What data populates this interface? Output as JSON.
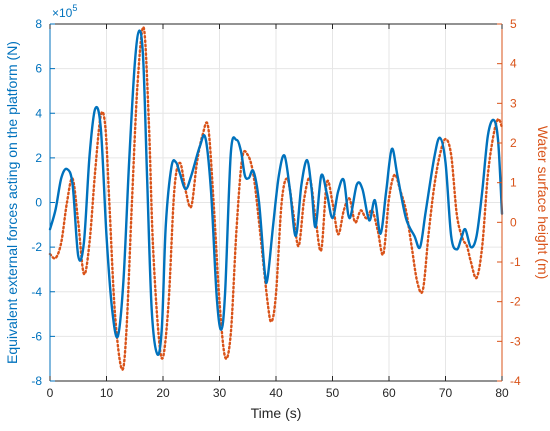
{
  "chart_data": {
    "type": "line",
    "title": "",
    "xlabel": "Time (s)",
    "xlim": [
      0,
      80
    ],
    "x_ticks": [
      0,
      10,
      20,
      30,
      40,
      50,
      60,
      70,
      80
    ],
    "grid": true,
    "left_axis": {
      "label": "Equivalent external forces acting on the platform (N)",
      "ylim": [
        -800000,
        800000
      ],
      "tick_labels": [
        "-8",
        "-6",
        "-4",
        "-2",
        "0",
        "2",
        "4",
        "6",
        "8"
      ],
      "tick_values": [
        -800000,
        -600000,
        -400000,
        -200000,
        0,
        200000,
        400000,
        600000,
        800000
      ],
      "exponent_label": "×10",
      "exponent_power": "5",
      "color": "#0072BD"
    },
    "right_axis": {
      "label": "Water surface height (m)",
      "ylim": [
        -4,
        5
      ],
      "tick_values": [
        -4,
        -3,
        -2,
        -1,
        0,
        1,
        2,
        3,
        4,
        5
      ],
      "tick_labels": [
        "-4",
        "-3",
        "-2",
        "-1",
        "0",
        "1",
        "2",
        "3",
        "4",
        "5"
      ],
      "color": "#D95319"
    },
    "series": [
      {
        "axis": "left",
        "style": "solid",
        "color": "#0072BD",
        "points": [
          [
            0,
            -120000
          ],
          [
            1,
            -30000
          ],
          [
            2,
            110000
          ],
          [
            3,
            150000
          ],
          [
            4,
            80000
          ],
          [
            5,
            -240000
          ],
          [
            6,
            -180000
          ],
          [
            7,
            210000
          ],
          [
            8,
            420000
          ],
          [
            9,
            330000
          ],
          [
            10,
            -150000
          ],
          [
            11,
            -480000
          ],
          [
            12,
            -600000
          ],
          [
            13,
            -350000
          ],
          [
            14,
            180000
          ],
          [
            15,
            620000
          ],
          [
            15.8,
            770000
          ],
          [
            16.5,
            640000
          ],
          [
            17.2,
            100000
          ],
          [
            18,
            -480000
          ],
          [
            19,
            -680000
          ],
          [
            19.8,
            -560000
          ],
          [
            20.5,
            -100000
          ],
          [
            21.5,
            160000
          ],
          [
            22.3,
            180000
          ],
          [
            23,
            130000
          ],
          [
            24,
            60000
          ],
          [
            25,
            120000
          ],
          [
            26.5,
            250000
          ],
          [
            27.5,
            290000
          ],
          [
            28.5,
            50000
          ],
          [
            29.5,
            -420000
          ],
          [
            30.3,
            -570000
          ],
          [
            31,
            -400000
          ],
          [
            32,
            220000
          ],
          [
            33,
            280000
          ],
          [
            33.8,
            230000
          ],
          [
            34.5,
            120000
          ],
          [
            35.2,
            110000
          ],
          [
            36,
            140000
          ],
          [
            37,
            0
          ],
          [
            38,
            -310000
          ],
          [
            38.5,
            -340000
          ],
          [
            39.5,
            -100000
          ],
          [
            40.5,
            120000
          ],
          [
            41.5,
            210000
          ],
          [
            42.5,
            50000
          ],
          [
            43.5,
            -150000
          ],
          [
            44.5,
            80000
          ],
          [
            45.5,
            190000
          ],
          [
            46.3,
            60000
          ],
          [
            47,
            -110000
          ],
          [
            48,
            120000
          ],
          [
            49,
            40000
          ],
          [
            50,
            -70000
          ],
          [
            51,
            50000
          ],
          [
            52,
            100000
          ],
          [
            53,
            -70000
          ],
          [
            54.3,
            80000
          ],
          [
            55.3,
            60000
          ],
          [
            56.5,
            -80000
          ],
          [
            57.5,
            10000
          ],
          [
            58.5,
            -140000
          ],
          [
            59.5,
            50000
          ],
          [
            60.5,
            240000
          ],
          [
            61.5,
            120000
          ],
          [
            63,
            -70000
          ],
          [
            64.5,
            -150000
          ],
          [
            65.5,
            -200000
          ],
          [
            66.5,
            -40000
          ],
          [
            68,
            200000
          ],
          [
            69,
            290000
          ],
          [
            70,
            180000
          ],
          [
            71,
            -150000
          ],
          [
            72,
            -210000
          ],
          [
            72.8,
            -160000
          ],
          [
            73.5,
            -120000
          ],
          [
            74.5,
            -200000
          ],
          [
            75.5,
            -150000
          ],
          [
            76.5,
            50000
          ],
          [
            77.5,
            300000
          ],
          [
            78.5,
            370000
          ],
          [
            79.3,
            280000
          ],
          [
            80,
            -50000
          ]
        ]
      },
      {
        "axis": "right",
        "style": "dotted",
        "color": "#D95319",
        "points": [
          [
            0,
            -0.8
          ],
          [
            1,
            -0.9
          ],
          [
            2,
            -0.5
          ],
          [
            3,
            0.5
          ],
          [
            4,
            1.1
          ],
          [
            5,
            0.0
          ],
          [
            6,
            -1.3
          ],
          [
            7,
            -0.5
          ],
          [
            8,
            1.3
          ],
          [
            9,
            2.7
          ],
          [
            9.8,
            2.4
          ],
          [
            10.5,
            0.5
          ],
          [
            11.5,
            -2.3
          ],
          [
            12.7,
            -3.7
          ],
          [
            13.5,
            -2.8
          ],
          [
            14.5,
            0.5
          ],
          [
            15.5,
            3.5
          ],
          [
            16.6,
            4.9
          ],
          [
            17.5,
            2.5
          ],
          [
            18.2,
            -0.5
          ],
          [
            19.2,
            -2.8
          ],
          [
            20,
            -3.4
          ],
          [
            21,
            -2.0
          ],
          [
            22,
            0.8
          ],
          [
            23,
            1.5
          ],
          [
            24,
            0.8
          ],
          [
            25,
            0.4
          ],
          [
            26,
            1.5
          ],
          [
            27,
            2.2
          ],
          [
            28,
            2.4
          ],
          [
            29,
            0.4
          ],
          [
            30,
            -2.0
          ],
          [
            31,
            -3.4
          ],
          [
            32,
            -2.8
          ],
          [
            33,
            -0.2
          ],
          [
            34,
            1.6
          ],
          [
            35,
            1.7
          ],
          [
            36,
            1.2
          ],
          [
            37,
            0.0
          ],
          [
            38.5,
            -2.0
          ],
          [
            39.2,
            -2.5
          ],
          [
            40,
            -1.8
          ],
          [
            41,
            0.5
          ],
          [
            42,
            1.1
          ],
          [
            43,
            0.3
          ],
          [
            44,
            -0.6
          ],
          [
            45,
            0.6
          ],
          [
            46,
            1.1
          ],
          [
            47,
            0.1
          ],
          [
            48,
            -0.7
          ],
          [
            49,
            1.0
          ],
          [
            50,
            0.5
          ],
          [
            51,
            -0.3
          ],
          [
            52,
            0.3
          ],
          [
            53,
            0.6
          ],
          [
            54,
            0.0
          ],
          [
            55,
            0.3
          ],
          [
            56,
            0.1
          ],
          [
            57,
            0.3
          ],
          [
            58,
            -0.2
          ],
          [
            59,
            -0.8
          ],
          [
            60,
            0.6
          ],
          [
            61,
            1.2
          ],
          [
            62,
            0.8
          ],
          [
            63,
            0.3
          ],
          [
            64,
            -0.6
          ],
          [
            65,
            -1.5
          ],
          [
            66,
            -1.7
          ],
          [
            67,
            -0.3
          ],
          [
            68,
            0.9
          ],
          [
            69,
            1.7
          ],
          [
            70,
            2.1
          ],
          [
            71,
            1.7
          ],
          [
            72,
            0.2
          ],
          [
            73,
            -0.4
          ],
          [
            73.8,
            -0.6
          ],
          [
            74.5,
            -1.0
          ],
          [
            75.5,
            -1.4
          ],
          [
            76.5,
            -0.6
          ],
          [
            77.5,
            1.2
          ],
          [
            78.5,
            2.2
          ],
          [
            79.3,
            2.6
          ],
          [
            80,
            2.4
          ]
        ]
      }
    ]
  }
}
